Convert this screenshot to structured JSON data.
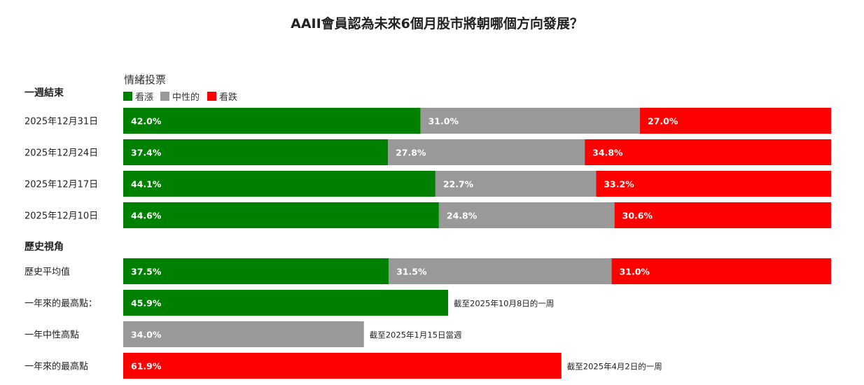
{
  "chart_data": {
    "type": "bar",
    "stacked": true,
    "orientation": "horizontal",
    "title": "AAII會員認為未來6個月股市將朝哪個方向發展？",
    "legend_title": "情緒投票",
    "legend_position": "top-left",
    "xlim": [
      0,
      100
    ],
    "series": [
      {
        "name": "看漲",
        "color": "#008000"
      },
      {
        "name": "中性的",
        "color": "#999999"
      },
      {
        "name": "看跌",
        "color": "#ff0000"
      }
    ],
    "sections": [
      {
        "label": "一週結束",
        "rows": [
          {
            "label": "2025年12月31日",
            "values": [
              42.0,
              31.0,
              27.0
            ],
            "value_labels": [
              "42.0%",
              "31.0%",
              "27.0%"
            ]
          },
          {
            "label": "2025年12月24日",
            "values": [
              37.4,
              27.8,
              34.8
            ],
            "value_labels": [
              "37.4%",
              "27.8%",
              "34.8%"
            ]
          },
          {
            "label": "2025年12月17日",
            "values": [
              44.1,
              22.7,
              33.2
            ],
            "value_labels": [
              "44.1%",
              "22.7%",
              "33.2%"
            ]
          },
          {
            "label": "2025年12月10日",
            "values": [
              44.6,
              24.8,
              30.6
            ],
            "value_labels": [
              "44.6%",
              "24.8%",
              "30.6%"
            ]
          }
        ]
      },
      {
        "label": "歷史視角",
        "rows": [
          {
            "label": "歷史平均值",
            "values": [
              37.5,
              31.5,
              31.0
            ],
            "value_labels": [
              "37.5%",
              "31.5%",
              "31.0%"
            ]
          },
          {
            "label": "一年來的最高點：",
            "values": [
              45.9,
              null,
              null
            ],
            "value_labels": [
              "45.9%",
              "",
              ""
            ],
            "note": "截至2025年10月8日的一周"
          },
          {
            "label": "一年中性高點",
            "values": [
              null,
              34.0,
              null
            ],
            "value_labels": [
              "",
              "34.0%",
              ""
            ],
            "note": "截至2025年1月15日當週"
          },
          {
            "label": "一年來的最高點",
            "values": [
              null,
              null,
              61.9
            ],
            "value_labels": [
              "",
              "",
              "61.9%"
            ],
            "note": "截至2025年4月2日的一周"
          }
        ]
      }
    ]
  }
}
